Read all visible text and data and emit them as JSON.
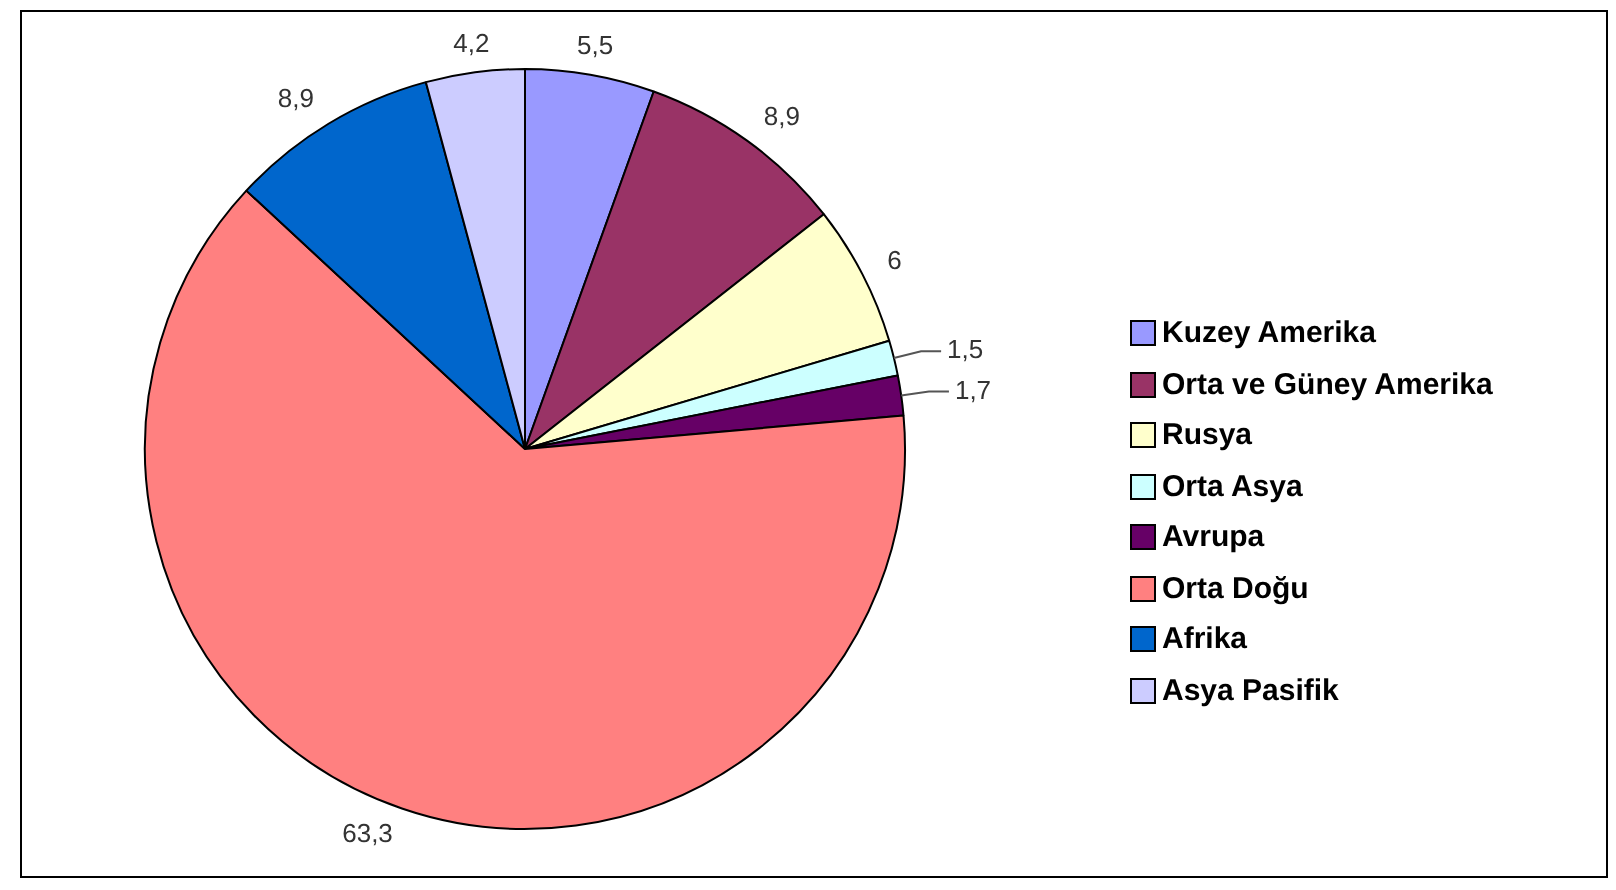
{
  "chart_data": {
    "type": "pie",
    "categories": [
      "Kuzey Amerika",
      "Orta ve Güney Amerika",
      "Rusya",
      "Orta Asya",
      "Avrupa",
      "Orta Doğu",
      "Afrika",
      "Asya Pasifik"
    ],
    "values": [
      5.5,
      8.9,
      6,
      1.5,
      1.7,
      63.3,
      8.9,
      4.2
    ],
    "value_labels": [
      "5,5",
      "8,9",
      "6",
      "1,5",
      "1,7",
      "63,3",
      "8,9",
      "4,2"
    ],
    "colors": [
      "#9999ff",
      "#993366",
      "#ffffcc",
      "#ccffff",
      "#660066",
      "#ff8080",
      "#0066cc",
      "#ccccff"
    ],
    "legend": "right"
  }
}
